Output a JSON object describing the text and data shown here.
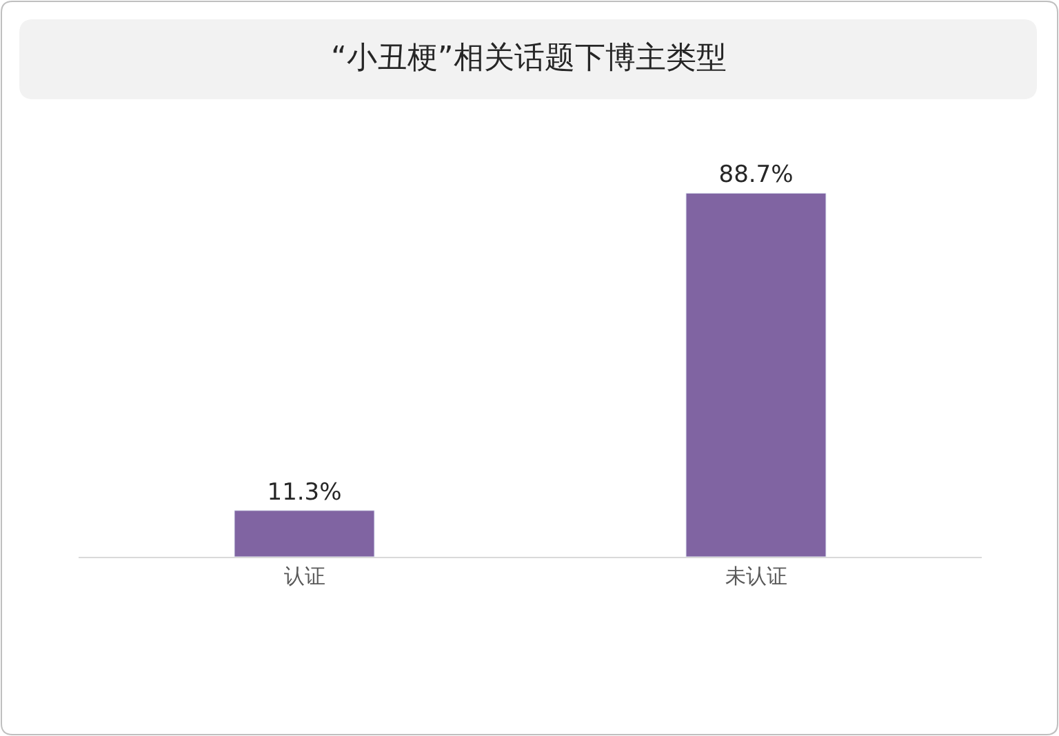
{
  "chart_data": {
    "type": "bar",
    "title": "“小丑梗”相关话题下博主类型",
    "categories": [
      "认证",
      "未认证"
    ],
    "values": [
      11.3,
      88.7
    ],
    "color": "#8064a2",
    "data_labels": true,
    "value_labels": [
      "11.3%",
      "88.7%"
    ]
  }
}
